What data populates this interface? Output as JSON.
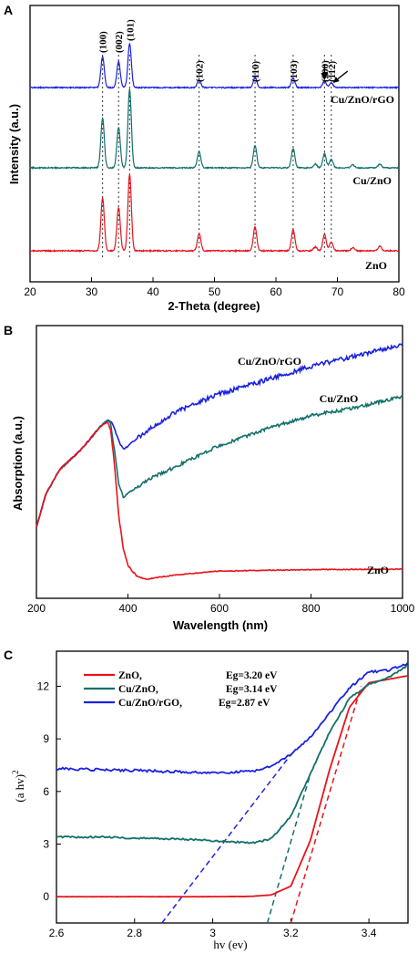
{
  "colors": {
    "red": "#e8131b",
    "green": "#11706a",
    "blue": "#1b22e0"
  },
  "panels": {
    "a": {
      "label": "A",
      "xlabel": "2-Theta (degree)",
      "ylabel": "Intensity (a.u.)"
    },
    "b": {
      "label": "B",
      "xlabel": "Wavelength (nm)",
      "ylabel": "Absorption (a.u.)"
    },
    "c": {
      "label": "C",
      "xlabel": "hv (ev)",
      "ylabel": "(a hv)",
      "ylabel_sup": "2"
    }
  },
  "chart_data": [
    {
      "type": "line",
      "panel": "A",
      "xlabel": "2-Theta (degree)",
      "ylabel": "Intensity (a.u.)",
      "xlim": [
        20,
        80
      ],
      "xticks": [
        20,
        30,
        40,
        50,
        60,
        70,
        80
      ],
      "peak_labels": [
        {
          "label": "(100)",
          "x": 31.8
        },
        {
          "label": "(002)",
          "x": 34.4
        },
        {
          "label": "(101)",
          "x": 36.2
        },
        {
          "label": "(102)",
          "x": 47.5
        },
        {
          "label": "(110)",
          "x": 56.6
        },
        {
          "label": "(103)",
          "x": 62.8
        },
        {
          "label": "(200)",
          "x": 67.9
        },
        {
          "label": "(112)",
          "x": 69.0
        }
      ],
      "series": [
        {
          "name": "ZnO",
          "color": "#e8131b",
          "offset": 0,
          "peaks": [
            [
              31.8,
              0.55
            ],
            [
              34.4,
              0.45
            ],
            [
              36.2,
              0.8
            ],
            [
              47.5,
              0.18
            ],
            [
              56.6,
              0.25
            ],
            [
              62.8,
              0.22
            ],
            [
              66.4,
              0.04
            ],
            [
              67.9,
              0.17
            ],
            [
              69.0,
              0.09
            ],
            [
              72.5,
              0.03
            ],
            [
              76.9,
              0.05
            ]
          ]
        },
        {
          "name": "Cu/ZnO",
          "color": "#11706a",
          "offset": 1,
          "peaks": [
            [
              31.8,
              0.52
            ],
            [
              34.4,
              0.42
            ],
            [
              36.2,
              0.82
            ],
            [
              47.5,
              0.17
            ],
            [
              56.6,
              0.23
            ],
            [
              62.8,
              0.2
            ],
            [
              66.4,
              0.04
            ],
            [
              67.9,
              0.15
            ],
            [
              69.0,
              0.09
            ],
            [
              72.5,
              0.03
            ],
            [
              76.9,
              0.04
            ]
          ]
        },
        {
          "name": "Cu/ZnO/rGO",
          "color": "#1b22e0",
          "offset": 2,
          "peaks": [
            [
              31.8,
              0.32
            ],
            [
              34.4,
              0.27
            ],
            [
              36.2,
              0.46
            ],
            [
              47.5,
              0.08
            ],
            [
              56.6,
              0.11
            ],
            [
              62.8,
              0.1
            ],
            [
              67.9,
              0.07
            ],
            [
              69.0,
              0.05
            ]
          ]
        }
      ]
    },
    {
      "type": "line",
      "panel": "B",
      "xlabel": "Wavelength (nm)",
      "ylabel": "Absorption (a.u.)",
      "xlim": [
        200,
        1000
      ],
      "xticks": [
        200,
        400,
        600,
        800,
        1000
      ],
      "series": [
        {
          "name": "Cu/ZnO/rGO",
          "color": "#1b22e0",
          "x": [
            200,
            220,
            250,
            300,
            340,
            355,
            365,
            375,
            385,
            392,
            400,
            430,
            500,
            600,
            700,
            800,
            900,
            1000
          ],
          "y": [
            0.26,
            0.38,
            0.47,
            0.55,
            0.63,
            0.655,
            0.645,
            0.6,
            0.56,
            0.545,
            0.56,
            0.6,
            0.68,
            0.75,
            0.8,
            0.85,
            0.89,
            0.93
          ]
        },
        {
          "name": "Cu/ZnO",
          "color": "#11706a",
          "x": [
            200,
            220,
            250,
            300,
            340,
            355,
            362,
            370,
            380,
            390,
            400,
            450,
            500,
            600,
            700,
            800,
            900,
            1000
          ],
          "y": [
            0.26,
            0.38,
            0.47,
            0.55,
            0.63,
            0.655,
            0.64,
            0.55,
            0.42,
            0.37,
            0.385,
            0.44,
            0.48,
            0.56,
            0.62,
            0.67,
            0.7,
            0.74
          ]
        },
        {
          "name": "ZnO",
          "color": "#e8131b",
          "x": [
            200,
            220,
            250,
            300,
            340,
            355,
            362,
            370,
            380,
            390,
            400,
            420,
            440,
            500,
            600,
            800,
            1000
          ],
          "y": [
            0.26,
            0.38,
            0.47,
            0.55,
            0.63,
            0.645,
            0.62,
            0.5,
            0.3,
            0.18,
            0.12,
            0.08,
            0.07,
            0.085,
            0.1,
            0.105,
            0.107
          ]
        }
      ]
    },
    {
      "type": "line",
      "panel": "C",
      "xlabel": "hv (ev)",
      "ylabel": "(a hv)2",
      "xlim": [
        2.6,
        3.5
      ],
      "ylim": [
        -1.5,
        14
      ],
      "xticks": [
        2.6,
        2.8,
        3.0,
        3.2,
        3.4
      ],
      "yticks": [
        0,
        3,
        6,
        9,
        12
      ],
      "legend_position": "top-left",
      "series": [
        {
          "name": "ZnO,",
          "eg": "Eg=3.20 eV",
          "color": "#e8131b",
          "x": [
            2.6,
            2.8,
            3.0,
            3.1,
            3.15,
            3.2,
            3.25,
            3.3,
            3.35,
            3.4,
            3.45,
            3.5
          ],
          "y": [
            0,
            0,
            0,
            0.02,
            0.1,
            0.6,
            3.2,
            7.3,
            10.8,
            12.2,
            12.4,
            12.6
          ],
          "tangent": [
            [
              3.2,
              -1.5
            ],
            [
              3.38,
              12
            ]
          ]
        },
        {
          "name": "Cu/ZnO,",
          "eg": "Eg=3.14 eV",
          "color": "#11706a",
          "x": [
            2.6,
            2.7,
            2.9,
            3.0,
            3.1,
            3.15,
            3.2,
            3.25,
            3.3,
            3.35,
            3.4,
            3.45,
            3.5
          ],
          "y": [
            3.4,
            3.4,
            3.3,
            3.2,
            3.05,
            3.3,
            4.6,
            7.0,
            9.4,
            11.3,
            12.1,
            12.5,
            13.2
          ],
          "tangent": [
            [
              3.14,
              -1.5
            ],
            [
              3.25,
              7
            ]
          ]
        },
        {
          "name": "Cu/ZnO/rGO,",
          "eg": "Eg=2.87 eV",
          "color": "#1b22e0",
          "x": [
            2.6,
            2.8,
            3.0,
            3.1,
            3.15,
            3.2,
            3.25,
            3.3,
            3.35,
            3.4,
            3.45,
            3.5
          ],
          "y": [
            7.3,
            7.2,
            7.05,
            7.15,
            7.45,
            8.1,
            9.1,
            10.5,
            11.9,
            12.8,
            12.9,
            13.3
          ],
          "tangent": [
            [
              2.87,
              -1.5
            ],
            [
              3.2,
              8.1
            ]
          ]
        }
      ]
    }
  ]
}
